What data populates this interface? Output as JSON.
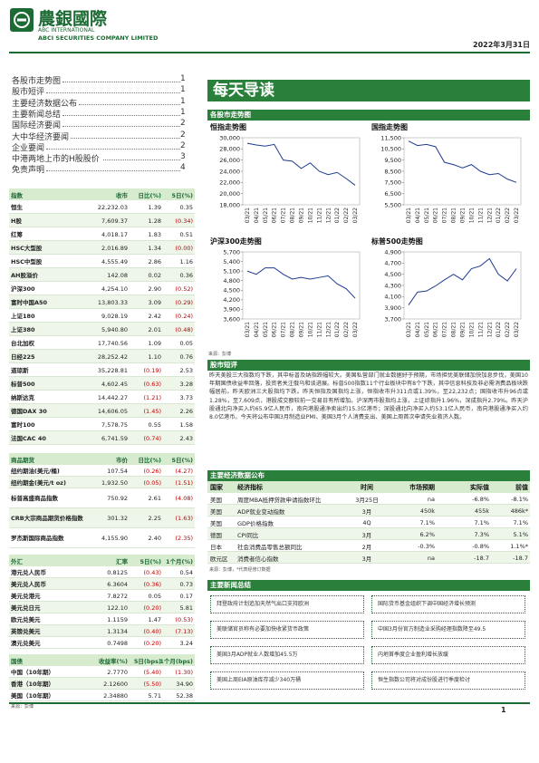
{
  "header": {
    "company_cn": "農銀國際",
    "company_en1": "ABC INTERNATIONAL",
    "company_en2": "ABCI SECURITIES COMPANY LIMITED",
    "date": "2022年3月31日"
  },
  "toc": [
    {
      "title": "各股市走势图",
      "page": "1"
    },
    {
      "title": "股市短评",
      "page": "1"
    },
    {
      "title": "主要经济数据公布",
      "page": "1"
    },
    {
      "title": "主要新闻总结",
      "page": "1"
    },
    {
      "title": "国际经济要闻",
      "page": "2"
    },
    {
      "title": "大中华经济要闻",
      "page": "2"
    },
    {
      "title": "企业要闻",
      "page": "2"
    },
    {
      "title": "中港两地上市的H股股价",
      "page": "3"
    },
    {
      "title": "免责声明",
      "page": "4"
    }
  ],
  "tables": {
    "indices": {
      "header": [
        "指数",
        "收市",
        "日比(%)",
        "5日(%)"
      ],
      "rows": [
        [
          "恒生",
          "22,232.03",
          "1.39",
          "0.35"
        ],
        [
          "H股",
          "7,609.37",
          "1.28",
          "(0.34)"
        ],
        [
          "红筹",
          "4,018.17",
          "1.83",
          "0.51"
        ],
        [
          "HSC大型股",
          "2,016.89",
          "1.34",
          "(0.00)"
        ],
        [
          "HSC中型股",
          "4,555.49",
          "2.86",
          "1.16"
        ],
        [
          "AH股溢价",
          "142.08",
          "0.02",
          "0.36"
        ],
        [
          "沪深300",
          "4,254.10",
          "2.90",
          "(0.52)"
        ],
        [
          "富时中国A50",
          "13,803.33",
          "3.09",
          "(0.29)"
        ],
        [
          "上证180",
          "9,028.19",
          "2.42",
          "(0.24)"
        ],
        [
          "上证380",
          "5,940.80",
          "2.01",
          "(0.48)"
        ],
        [
          "台北加权",
          "17,740.56",
          "1.09",
          "0.05"
        ],
        [
          "日经225",
          "28,252.42",
          "1.10",
          "0.76"
        ],
        [
          "道琼斯",
          "35,228.81",
          "(0.19)",
          "2.53"
        ],
        [
          "标普500",
          "4,602.45",
          "(0.63)",
          "3.28"
        ],
        [
          "纳斯达克",
          "14,442.27",
          "(1.21)",
          "3.73"
        ],
        [
          "德国DAX 30",
          "14,606.05",
          "(1.45)",
          "2.26"
        ],
        [
          "富时100",
          "7,578.75",
          "0.55",
          "1.58"
        ],
        [
          "法国CAC 40",
          "6,741.59",
          "(0.74)",
          "2.43"
        ]
      ]
    },
    "commodities": {
      "header": [
        "商品期货",
        "市价",
        "日比(%)",
        "5日(%)"
      ],
      "rows": [
        [
          "纽约期油(美元/桶)",
          "107.54",
          "(0.26)",
          "(4.27)"
        ],
        [
          "纽约期金(美元/t oz)",
          "1,932.50",
          "(0.05)",
          "(1.51)"
        ],
        [
          "标普高盛商品指数",
          "750.92",
          "2.61",
          "(4.08)"
        ],
        [
          "CRB大宗商品期货价格指数",
          "301.32",
          "2.25",
          "(1.63)"
        ],
        [
          "罗杰斯国际商品指数",
          "4,155.90",
          "2.40",
          "(2.35)"
        ]
      ]
    },
    "fx": {
      "header": [
        "外汇",
        "汇率",
        "5日(%)",
        "1个月(%)"
      ],
      "rows": [
        [
          "港元兑人民币",
          "0.8125",
          "(0.43)",
          "0.54"
        ],
        [
          "美元兑人民币",
          "6.3604",
          "(0.36)",
          "0.73"
        ],
        [
          "美元兑港元",
          "7.8272",
          "0.05",
          "0.17"
        ],
        [
          "美元兑日元",
          "122.10",
          "(0.20)",
          "5.81"
        ],
        [
          "欧元兑美元",
          "1.1159",
          "1.47",
          "(0.53)"
        ],
        [
          "英镑兑美元",
          "1.3134",
          "(0.40)",
          "(7.13)"
        ],
        [
          "澳元兑美元",
          "0.7498",
          "(0.20)",
          "3.24"
        ]
      ]
    },
    "bonds": {
      "header": [
        "国债",
        "收益率(%)",
        "5日(bps)",
        "1个月(bps)"
      ],
      "rows": [
        [
          "中国（10年期）",
          "2.7770",
          "(5.40)",
          "(1.30)"
        ],
        [
          "香港（10年期）",
          "2.12600",
          "(5.50)",
          "34.90"
        ],
        [
          "美国（10年期）",
          "2.34880",
          "5.71",
          "52.38"
        ]
      ]
    }
  },
  "left_source": "来源：彭博",
  "digest": {
    "title": "每天导读"
  },
  "charts_section": {
    "title": "各股市走势图",
    "source": "来源：彭博"
  },
  "chart_data": [
    {
      "type": "line",
      "title": "恒指走势图",
      "color": "#1f3b8f",
      "categories": [
        "03/21",
        "04/21",
        "05/21",
        "06/21",
        "07/21",
        "08/21",
        "09/21",
        "10/21",
        "11/21",
        "12/21",
        "01/22",
        "02/22",
        "03/22"
      ],
      "values": [
        29000,
        28700,
        28500,
        28800,
        26000,
        25800,
        24500,
        25500,
        24000,
        23400,
        23800,
        22700,
        21500
      ],
      "ylim": [
        18000,
        30000
      ],
      "yticks": [
        {
          "value": 30000,
          "label": "30,000"
        },
        {
          "value": 28000,
          "label": "28,000"
        },
        {
          "value": 26000,
          "label": "26,000"
        },
        {
          "value": 24000,
          "label": "24,000"
        },
        {
          "value": 22000,
          "label": "22,000"
        },
        {
          "value": 20000,
          "label": "20,000"
        },
        {
          "value": 18000,
          "label": "18,000"
        }
      ]
    },
    {
      "type": "line",
      "title": "国指走势图",
      "color": "#1f3b8f",
      "categories": [
        "03/21",
        "04/21",
        "05/21",
        "06/21",
        "07/21",
        "08/21",
        "09/21",
        "10/21",
        "11/21",
        "12/21",
        "01/22",
        "02/22",
        "03/22"
      ],
      "values": [
        11200,
        10800,
        10900,
        10700,
        9300,
        9100,
        8800,
        9100,
        8500,
        8200,
        8300,
        7800,
        7500
      ],
      "ylim": [
        5500,
        11500
      ],
      "yticks": [
        {
          "value": 11500,
          "label": "11,500"
        },
        {
          "value": 10500,
          "label": "10,500"
        },
        {
          "value": 9500,
          "label": "9,500"
        },
        {
          "value": 8500,
          "label": "8,500"
        },
        {
          "value": 7500,
          "label": "7,500"
        },
        {
          "value": 6500,
          "label": "6,500"
        },
        {
          "value": 5500,
          "label": "5,500"
        }
      ]
    },
    {
      "type": "line",
      "title": "沪深300走势图",
      "color": "#1f3b8f",
      "categories": [
        "03/21",
        "04/21",
        "05/21",
        "06/21",
        "07/21",
        "08/21",
        "09/21",
        "10/21",
        "11/21",
        "12/21",
        "01/22",
        "02/22",
        "03/22"
      ],
      "values": [
        5100,
        5000,
        5200,
        5200,
        5000,
        4850,
        4900,
        4850,
        4900,
        4950,
        4700,
        4550,
        4250
      ],
      "ylim": [
        3600,
        5700
      ],
      "yticks": [
        {
          "value": 5700,
          "label": "5,700"
        },
        {
          "value": 5400,
          "label": "5,400"
        },
        {
          "value": 5100,
          "label": "5,100"
        },
        {
          "value": 4800,
          "label": "4,800"
        },
        {
          "value": 4500,
          "label": "4,500"
        },
        {
          "value": 4200,
          "label": "4,200"
        },
        {
          "value": 3900,
          "label": "3,900"
        },
        {
          "value": 3600,
          "label": "3,600"
        }
      ]
    },
    {
      "type": "line",
      "title": "标普500走势图",
      "color": "#1f3b8f",
      "categories": [
        "03/21",
        "04/21",
        "05/21",
        "06/21",
        "07/21",
        "08/21",
        "09/21",
        "10/21",
        "11/21",
        "12/21",
        "01/22",
        "02/22",
        "03/22"
      ],
      "values": [
        3950,
        4180,
        4200,
        4290,
        4400,
        4500,
        4400,
        4600,
        4650,
        4780,
        4500,
        4380,
        4600
      ],
      "ylim": [
        3700,
        4900
      ],
      "yticks": [
        {
          "value": 4900,
          "label": "4,900"
        },
        {
          "value": 4700,
          "label": "4,700"
        },
        {
          "value": 4500,
          "label": "4,500"
        },
        {
          "value": 4300,
          "label": "4,300"
        },
        {
          "value": 4100,
          "label": "4,100"
        },
        {
          "value": 3900,
          "label": "3,900"
        },
        {
          "value": 3700,
          "label": "3,700"
        }
      ]
    }
  ],
  "commentary": {
    "title": "股市短评",
    "text": "昨天美股三大指数均下跌，其中标普及纳指跌幅较大。美国私营部门就业数据好于预期，市场担忧美联储加快加息步伐，美国10年期国债收益率回落，投资者关注俄乌和谈进展。标普500指数11个行业板块中有8个下跌，其中信息科技及非必需消费品板块跌幅居前。昨天欧洲三大股指均下跌。昨天恒指及国指均上涨，恒指收市升311点或1.39%，至22,232点；国指收市升96点或1.28%，至7,609点，港股成交额较前一交易日有所增加。沪深两市股指均上涨，上证综指升1.96%，深成指升2.79%。昨天沪股通北向净买入约65.9亿人民币，南向港股通净卖出约15.3亿港币；深股通北向净买入约53.1亿人民币，南向港股通净买入约8.0亿港币。今天将公布中国3月制造业PMI、美国3月个人消费支出、美国上周首次申请失业救济人数。"
  },
  "econ": {
    "title": "主要经济数据公布",
    "header": [
      "国家",
      "经济指标",
      "时间",
      "市场预期",
      "实际值",
      "前值"
    ],
    "rows": [
      [
        "美国",
        "周度MBA抵押贷款申请指数环比",
        "3月25日",
        "na",
        "-6.8%",
        "-8.1%"
      ],
      [
        "美国",
        "ADP就业变动指数",
        "3月",
        "450k",
        "455k",
        "486k*"
      ],
      [
        "美国",
        "GDP价格指数",
        "4Q",
        "7.1%",
        "7.1%",
        "7.1%"
      ],
      [
        "德国",
        "CPI同比",
        "3月",
        "6.2%",
        "7.3%",
        "5.1%"
      ],
      [
        "日本",
        "社会消费品零售总额同比",
        "2月",
        "-0.3%",
        "-0.8%",
        "1.1%*"
      ],
      [
        "欧元区",
        "消费者信心指数",
        "3月",
        "na",
        "-18.7",
        "-18.7"
      ]
    ],
    "note": "来源：彭博，*代表经修订数据"
  },
  "news": {
    "title": "主要新闻总结",
    "left": [
      "拜登政府计划追加天然气出口支持欧洲",
      "美联储官员称有必要加快收紧货币政策",
      "美国3月ADP就业人数增加45.5万",
      "美国上周EIA原油库存减少340万桶"
    ],
    "right": [
      "国际货币基金组织下调中国经济增长预测",
      "中国3月份官方制造业采购经理指数降至49.5",
      "内地首季度企业盈利增长放缓",
      "恒生指数公司将对成份股进行季度检讨"
    ]
  },
  "footer": {
    "page": "1"
  }
}
